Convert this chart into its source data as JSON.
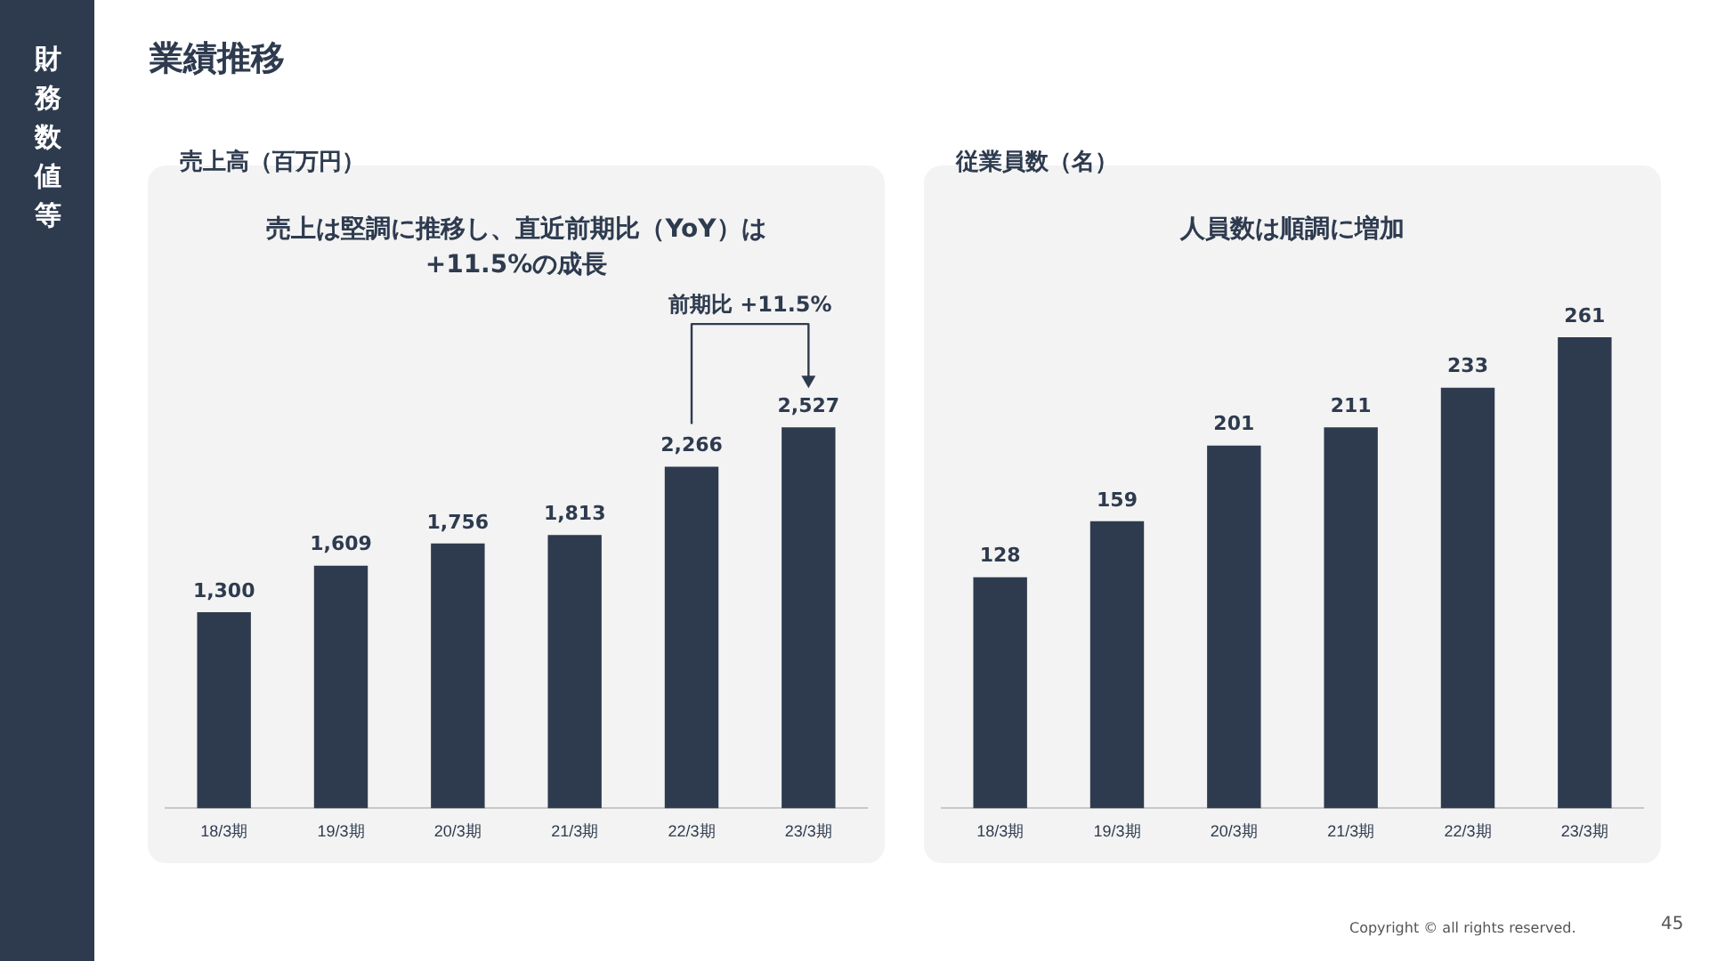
{
  "chart_data": [
    {
      "type": "bar",
      "title": "売上高（百万円）",
      "subtitle": "売上は堅調に推移し、直近前期比（YoY）は +11.5%の成長",
      "categories": [
        "18/3期",
        "19/3期",
        "20/3期",
        "21/3期",
        "22/3期",
        "23/3期"
      ],
      "values": [
        1300,
        1609,
        1756,
        1813,
        2266,
        2527
      ],
      "value_labels": [
        "1,300",
        "1,609",
        "1,756",
        "1,813",
        "2,266",
        "2,527"
      ],
      "color": "#2e3b4f",
      "tick_labels": "x",
      "grid": false,
      "legend": false,
      "annotations": [
        "財務数値等",
        "業績推移",
        "前期比 +11.5%"
      ]
    },
    {
      "type": "bar",
      "title": "従業員数（名）",
      "subtitle": "人員数は順調に増加",
      "categories": [
        "18/3期",
        "19/3期",
        "20/3期",
        "21/3期",
        "22/3期",
        "23/3期"
      ],
      "values": [
        128,
        159,
        201,
        211,
        233,
        261
      ],
      "value_labels": [
        "128",
        "159",
        "201",
        "211",
        "233",
        "261"
      ],
      "color": "#2e3b4f",
      "tick_labels": "x",
      "grid": false,
      "legend": false,
      "annotations": [
        "Copyright © all rights reserved.",
        "45"
      ]
    }
  ]
}
